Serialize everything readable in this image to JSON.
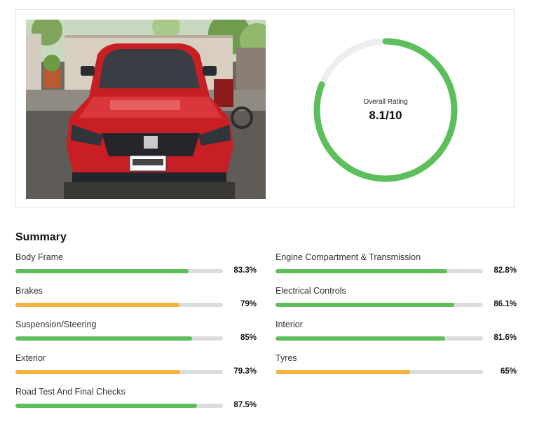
{
  "overall": {
    "label": "Overall Rating",
    "value_text": "8.1/10",
    "fraction": 0.81,
    "color": "#5cbf5c",
    "track_color": "#eeeeee"
  },
  "photo": {
    "icon": "car-photo"
  },
  "summary": {
    "title": "Summary",
    "colors": {
      "good": "#5cbf5c",
      "warn": "#f4b33f",
      "track": "#dcdcdc"
    },
    "items": [
      {
        "label": "Body Frame",
        "value": "83.3%",
        "percent": 83.3,
        "status": "good"
      },
      {
        "label": "Engine Compartment & Transmission",
        "value": "82.8%",
        "percent": 82.8,
        "status": "good"
      },
      {
        "label": "Brakes",
        "value": "79%",
        "percent": 79,
        "status": "warn"
      },
      {
        "label": "Electrical Controls",
        "value": "86.1%",
        "percent": 86.1,
        "status": "good"
      },
      {
        "label": "Suspension/Steering",
        "value": "85%",
        "percent": 85,
        "status": "good"
      },
      {
        "label": "Interior",
        "value": "81.6%",
        "percent": 81.6,
        "status": "good"
      },
      {
        "label": "Exterior",
        "value": "79.3%",
        "percent": 79.3,
        "status": "warn"
      },
      {
        "label": "Tyres",
        "value": "65%",
        "percent": 65,
        "status": "warn"
      },
      {
        "label": "Road Test And Final Checks",
        "value": "87.5%",
        "percent": 87.5,
        "status": "good"
      }
    ]
  }
}
